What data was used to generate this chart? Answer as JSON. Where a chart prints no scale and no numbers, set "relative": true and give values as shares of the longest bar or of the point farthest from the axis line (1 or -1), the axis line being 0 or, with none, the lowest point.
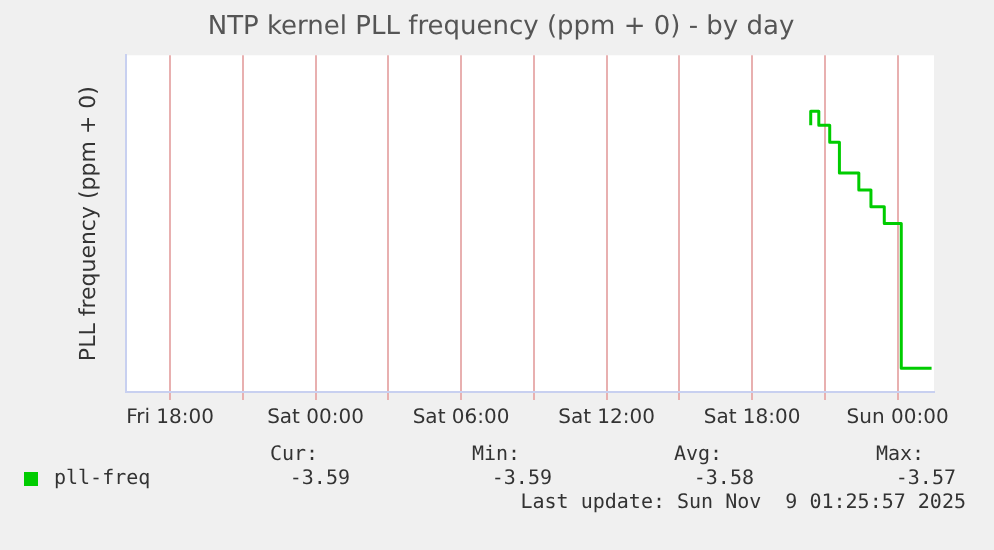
{
  "chart_data": {
    "type": "step",
    "title": "NTP kernel PLL frequency (ppm + 0) - by day",
    "ylabel": "PLL frequency (ppm + 0)",
    "relative": true,
    "xlim": [
      "2025-11-07T16:12",
      "2025-11-09T01:30"
    ],
    "xticks": [
      {
        "value": "2025-11-07T18:00",
        "label": "Fri 18:00"
      },
      {
        "value": "2025-11-07T21:00",
        "label": null
      },
      {
        "value": "2025-11-08T00:00",
        "label": "Sat 00:00"
      },
      {
        "value": "2025-11-08T03:00",
        "label": null
      },
      {
        "value": "2025-11-08T06:00",
        "label": "Sat 06:00"
      },
      {
        "value": "2025-11-08T09:00",
        "label": null
      },
      {
        "value": "2025-11-08T12:00",
        "label": "Sat 12:00"
      },
      {
        "value": "2025-11-08T15:00",
        "label": null
      },
      {
        "value": "2025-11-08T18:00",
        "label": "Sat 18:00"
      },
      {
        "value": "2025-11-08T21:00",
        "label": null
      },
      {
        "value": "2025-11-09T00:00",
        "label": "Sun 00:00"
      }
    ],
    "series": [
      {
        "name": "pll-freq",
        "color": "#00cc00",
        "x": [
          "2025-11-08T20:25",
          "2025-11-08T20:45",
          "2025-11-08T21:12",
          "2025-11-08T21:36",
          "2025-11-08T22:24",
          "2025-11-08T22:54",
          "2025-11-08T23:27",
          "2025-11-09T00:09",
          "2025-11-09T00:42",
          "2025-11-09T01:24"
        ],
        "values": [
          0.95,
          1,
          0.95,
          0.89,
          0.78,
          0.72,
          0.66,
          0.6,
          0.085,
          0.085
        ]
      }
    ],
    "grid": "x",
    "legend": "bottom",
    "annotations": [
      "Cur:",
      "-3.59",
      "Min:",
      "-3.59",
      "Avg:",
      "-3.58",
      "Max:",
      "-3.57",
      "Last update: Sun Nov  9 01:25:57 2025"
    ]
  }
}
